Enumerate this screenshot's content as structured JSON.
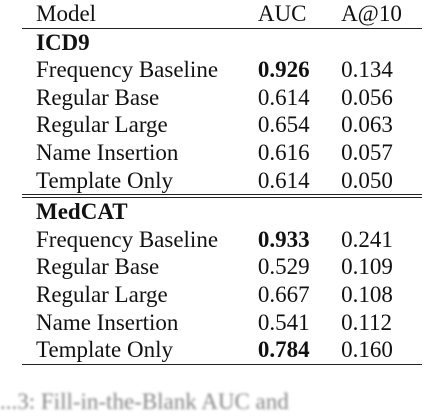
{
  "table": {
    "headers": [
      "Model",
      "AUC",
      "A@10"
    ],
    "sections": [
      {
        "name": "ICD9",
        "rows": [
          {
            "model": "Frequency Baseline",
            "auc": "0.926",
            "a10": "0.134",
            "auc_bold": true
          },
          {
            "model": "Regular Base",
            "auc": "0.614",
            "a10": "0.056",
            "auc_bold": false
          },
          {
            "model": "Regular Large",
            "auc": "0.654",
            "a10": "0.063",
            "auc_bold": false
          },
          {
            "model": "Name Insertion",
            "auc": "0.616",
            "a10": "0.057",
            "auc_bold": false
          },
          {
            "model": "Template Only",
            "auc": "0.614",
            "a10": "0.050",
            "auc_bold": false
          }
        ]
      },
      {
        "name": "MedCAT",
        "rows": [
          {
            "model": "Frequency Baseline",
            "auc": "0.933",
            "a10": "0.241",
            "auc_bold": true
          },
          {
            "model": "Regular Base",
            "auc": "0.529",
            "a10": "0.109",
            "auc_bold": false
          },
          {
            "model": "Regular Large",
            "auc": "0.667",
            "a10": "0.108",
            "auc_bold": false
          },
          {
            "model": "Name Insertion",
            "auc": "0.541",
            "a10": "0.112",
            "auc_bold": false
          },
          {
            "model": "Template Only",
            "auc": "0.784",
            "a10": "0.160",
            "auc_bold": true
          }
        ]
      }
    ]
  },
  "caption": {
    "text": "...3:   Fill-in-the-Blank   AUC   and"
  }
}
